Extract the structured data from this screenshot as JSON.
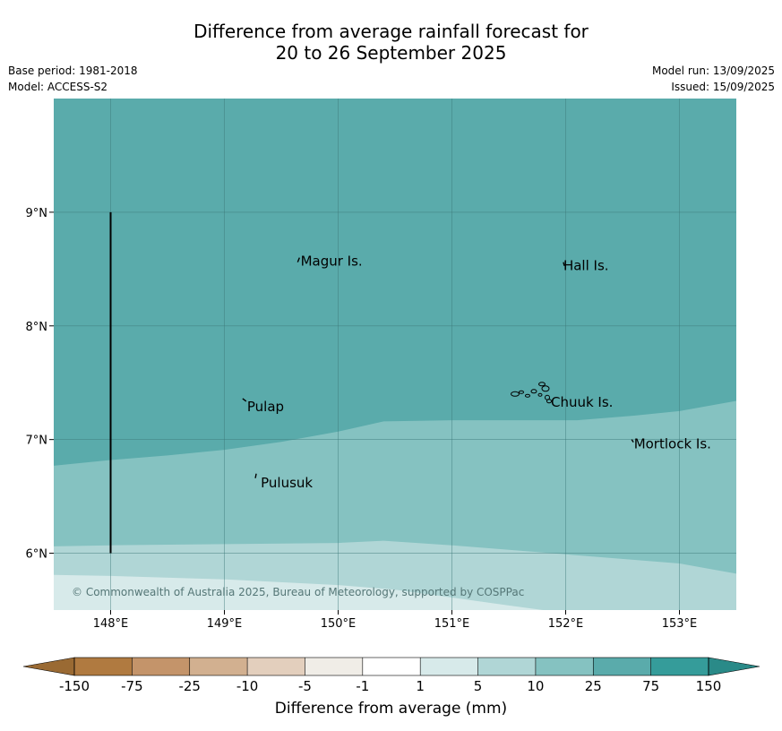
{
  "title_line1": "Difference from average rainfall forecast for",
  "title_line2": "20 to 26 September 2025",
  "base_period": "Base period: 1981-2018",
  "model": "Model: ACCESS-S2",
  "model_run": "Model run: 13/09/2025",
  "issued": "Issued: 15/09/2025",
  "copyright": "© Commonwealth of Australia 2025, Bureau of Meteorology, supported by COSPPac",
  "map": {
    "lon_range": [
      147.5,
      153.5
    ],
    "lat_range": [
      5.5,
      10.0
    ],
    "lon_ticks": [
      {
        "v": 148,
        "label": "148°E"
      },
      {
        "v": 149,
        "label": "149°E"
      },
      {
        "v": 150,
        "label": "150°E"
      },
      {
        "v": 151,
        "label": "151°E"
      },
      {
        "v": 152,
        "label": "152°E"
      },
      {
        "v": 153,
        "label": "153°E"
      }
    ],
    "lat_ticks": [
      {
        "v": 6,
        "label": "6°N"
      },
      {
        "v": 7,
        "label": "7°N"
      },
      {
        "v": 8,
        "label": "8°N"
      },
      {
        "v": 9,
        "label": "9°N"
      }
    ],
    "places": [
      {
        "name": "Magur Is.",
        "lon": 149.67,
        "lat": 8.57
      },
      {
        "name": "Hall Is.",
        "lon": 151.98,
        "lat": 8.53
      },
      {
        "name": "Pulap",
        "lon": 149.2,
        "lat": 7.29
      },
      {
        "name": "Chuuk Is.",
        "lon": 151.87,
        "lat": 7.33
      },
      {
        "name": "Mortlock Is.",
        "lon": 152.6,
        "lat": 6.96
      },
      {
        "name": "Pulusuk",
        "lon": 149.32,
        "lat": 6.62
      }
    ],
    "zones": [
      {
        "category": "25 to 75",
        "color": "#5aabab"
      },
      {
        "category": "10 to 25",
        "color": "#85c2c1"
      },
      {
        "category": "5 to 10",
        "color": "#b0d6d6"
      },
      {
        "category": "1 to 5",
        "color": "#d7eaea"
      }
    ]
  },
  "colorbar": {
    "label": "Difference from average (mm)",
    "ticks": [
      "-150",
      "-75",
      "-25",
      "-10",
      "-5",
      "-1",
      "1",
      "5",
      "10",
      "25",
      "75",
      "150"
    ],
    "colors": [
      "#b07a40",
      "#c4946a",
      "#d2b090",
      "#e3cfbd",
      "#f0ede7",
      "#ffffff",
      "#d7eaea",
      "#b0d6d6",
      "#85c2c1",
      "#5aabab",
      "#359c9a"
    ],
    "under_color": "#9a6a33",
    "over_color": "#2a8a88"
  }
}
